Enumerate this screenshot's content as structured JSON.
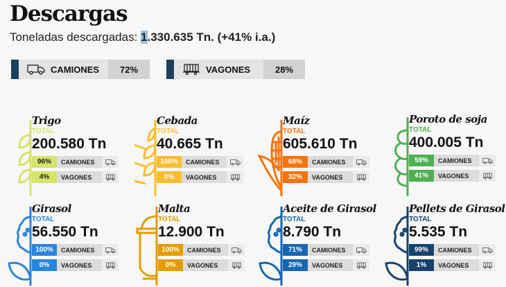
{
  "title": "Descargas",
  "subtitle": {
    "label": "Toneladas descargadas:",
    "highlight": "1",
    "value": ".330.635 Tn.",
    "change": "(+41% i.a.)"
  },
  "modes": [
    {
      "label": "CAMIONES",
      "pct": "72%",
      "icon": "truck-icon"
    },
    {
      "label": "VAGONES",
      "pct": "28%",
      "icon": "railcar-icon"
    }
  ],
  "total_label": "TOTAL",
  "camiones_label": "CAMIONES",
  "vagones_label": "VAGONES",
  "crops": [
    {
      "name": "Trigo",
      "value": "200.580 Tn",
      "camiones": "96%",
      "vagones": "4%",
      "color": "#d7e36a",
      "icon": "wheat-icon"
    },
    {
      "name": "Cebada",
      "value": "40.665 Tn",
      "camiones": "100%",
      "vagones": "0%",
      "color": "#fbbd30",
      "icon": "barley-icon"
    },
    {
      "name": "Maíz",
      "value": "605.610 Tn",
      "camiones": "68%",
      "vagones": "32%",
      "color": "#f77310",
      "icon": "corn-icon"
    },
    {
      "name": "Poroto de soja",
      "value": "400.005 Tn",
      "camiones": "59%",
      "vagones": "41%",
      "color": "#4fb052",
      "icon": "soybean-icon"
    },
    {
      "name": "Girasol",
      "value": "56.550 Tn",
      "camiones": "100%",
      "vagones": "0%",
      "color": "#2a86dc",
      "icon": "sunflower-icon"
    },
    {
      "name": "Malta",
      "value": "12.900 Tn",
      "camiones": "100%",
      "vagones": "0%",
      "color": "#e39c00",
      "icon": "malt-tank-icon"
    },
    {
      "name": "Aceite de Girasol",
      "value": "8.790 Tn",
      "camiones": "71%",
      "vagones": "29%",
      "color": "#1766b3",
      "icon": "sunflower-icon"
    },
    {
      "name": "Pellets de Girasol",
      "value": "5.535 Tn",
      "camiones": "99%",
      "vagones": "1%",
      "color": "#15426b",
      "icon": "sunflower-icon"
    }
  ]
}
